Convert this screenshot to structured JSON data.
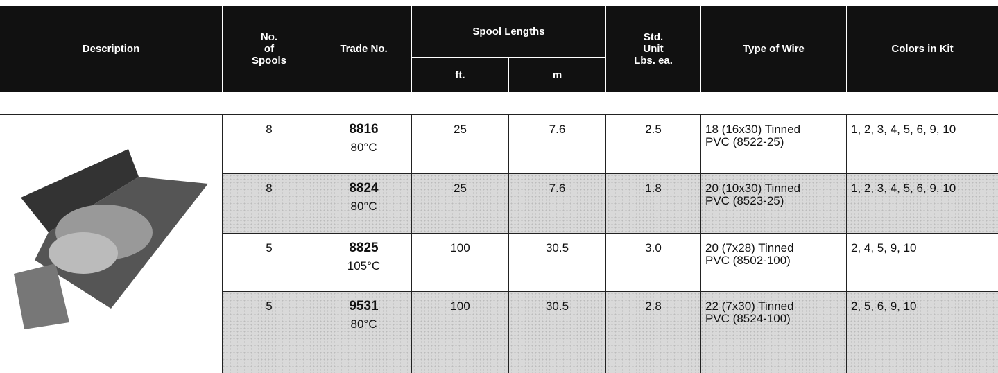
{
  "table": {
    "header": {
      "description": "Description",
      "spools": [
        "No.",
        "of",
        "Spools"
      ],
      "trade_no": "Trade No.",
      "spool_lengths": "Spool Lengths",
      "ft": "ft.",
      "m": "m",
      "unit": [
        "Std.",
        "Unit",
        "Lbs. ea."
      ],
      "wire": "Type of Wire",
      "colors": "Colors in Kit"
    },
    "rows": [
      {
        "spools": "8",
        "trade_no": "8816",
        "temp": "80°C",
        "ft": "25",
        "m": "7.6",
        "lbs": "2.5",
        "wire": [
          "18 (16x30) Tinned",
          "PVC (8522-25)"
        ],
        "colors": "1, 2, 3, 4, 5, 6, 9, 10"
      },
      {
        "spools": "8",
        "trade_no": "8824",
        "temp": "80°C",
        "ft": "25",
        "m": "7.6",
        "lbs": "1.8",
        "wire": [
          "20 (10x30) Tinned",
          "PVC (8523-25)"
        ],
        "colors": "1, 2, 3, 4, 5, 6, 9, 10"
      },
      {
        "spools": "5",
        "trade_no": "8825",
        "temp": "105°C",
        "ft": "100",
        "m": "30.5",
        "lbs": "3.0",
        "wire": [
          "20 (7x28) Tinned",
          "PVC (8502-100)"
        ],
        "colors": "2, 4, 5, 9, 10"
      },
      {
        "spools": "5",
        "trade_no": "9531",
        "temp": "80°C",
        "ft": "100",
        "m": "30.5",
        "lbs": "2.8",
        "wire": [
          "22 (7x30) Tinned",
          "PVC (8524-100)"
        ],
        "colors": "2, 5, 6, 9, 10"
      }
    ]
  }
}
